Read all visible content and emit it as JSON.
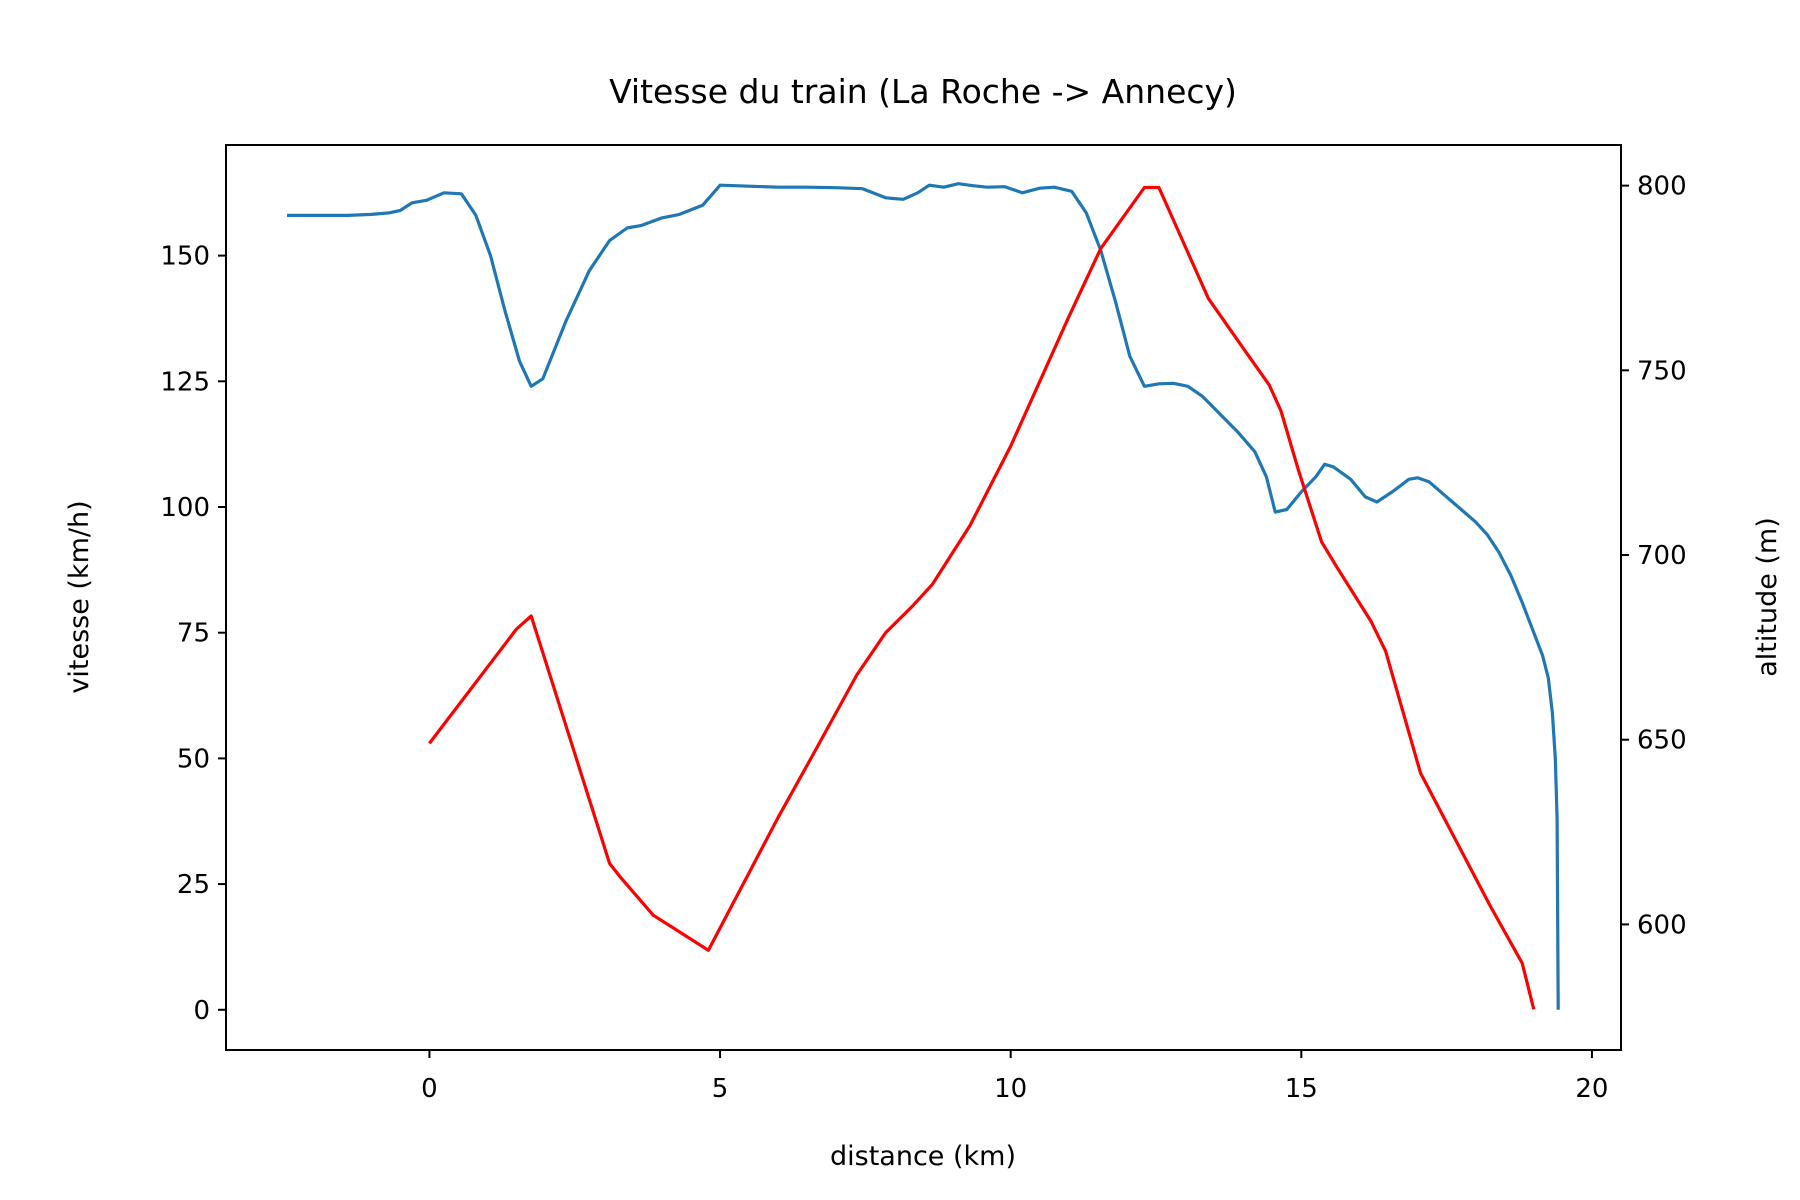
{
  "chart_data": {
    "type": "line",
    "title": "Vitesse du train (La Roche -> Annecy)",
    "xlabel": "distance (km)",
    "ylabel": "vitesse (km/h)",
    "y2label": "altitude (m)",
    "xlim": [
      -3.5,
      20.5
    ],
    "ylim": [
      -8,
      172
    ],
    "y2lim": [
      566,
      811
    ],
    "xticks": [
      "0",
      "5",
      "10",
      "15",
      "20"
    ],
    "yticks": [
      "0",
      "25",
      "50",
      "75",
      "100",
      "125",
      "150"
    ],
    "y2ticks": [
      "600",
      "650",
      "700",
      "750",
      "800"
    ],
    "grid": false,
    "series": [
      {
        "axis": "left",
        "color": "#1f77b4",
        "x": [
          -2.45,
          -1.9,
          -1.4,
          -1.0,
          -0.7,
          -0.5,
          -0.3,
          -0.05,
          0.25,
          0.55,
          0.8,
          1.05,
          1.3,
          1.55,
          1.75,
          1.95,
          2.35,
          2.75,
          3.1,
          3.4,
          3.65,
          4.0,
          4.3,
          4.7,
          5.0,
          5.5,
          6.0,
          6.5,
          7.0,
          7.45,
          7.85,
          8.15,
          8.4,
          8.6,
          8.85,
          9.1,
          9.35,
          9.6,
          9.9,
          10.2,
          10.5,
          10.75,
          11.05,
          11.3,
          11.55,
          11.8,
          12.05,
          12.3,
          12.55,
          12.8,
          13.05,
          13.3,
          13.6,
          13.9,
          14.2,
          14.4,
          14.55,
          14.75,
          15.0,
          15.25,
          15.4,
          15.55,
          15.85,
          16.1,
          16.3,
          16.6,
          16.85,
          17.0,
          17.2,
          17.5,
          17.75,
          18.0,
          18.2,
          18.4,
          18.6,
          18.8,
          19.0,
          19.15,
          19.25,
          19.32,
          19.37,
          19.4,
          19.42
        ],
        "y": [
          158,
          158,
          158,
          158.2,
          158.5,
          159,
          160.5,
          161,
          162.5,
          162.3,
          158,
          150,
          139,
          129,
          124,
          125.5,
          137,
          147,
          153,
          155.5,
          156,
          157.5,
          158.2,
          160,
          164,
          163.8,
          163.6,
          163.6,
          163.5,
          163.3,
          161.5,
          161.2,
          162.5,
          164,
          163.6,
          164.3,
          163.9,
          163.6,
          163.7,
          162.5,
          163.4,
          163.6,
          162.8,
          158.5,
          151,
          141,
          130,
          124,
          124.5,
          124.6,
          124,
          122,
          118.5,
          115,
          111,
          106,
          99,
          99.5,
          103,
          106,
          108.5,
          108,
          105.5,
          102,
          101,
          103.3,
          105.5,
          105.8,
          105,
          102,
          99.5,
          97,
          94.5,
          91,
          86.5,
          81,
          75,
          70.5,
          66,
          59,
          50,
          38,
          0
        ]
      },
      {
        "axis": "right",
        "color": "#ff0000",
        "x": [
          0.0,
          1.5,
          1.75,
          3.1,
          3.3,
          3.85,
          4.2,
          4.8,
          5.5,
          6.0,
          6.6,
          7.35,
          7.85,
          8.3,
          8.65,
          9.3,
          10.0,
          11.0,
          11.55,
          12.3,
          12.55,
          13.4,
          14.0,
          14.45,
          14.65,
          14.95,
          15.35,
          15.6,
          16.2,
          16.45,
          17.05,
          17.5,
          18.25,
          18.8,
          19.0
        ],
        "y": [
          649,
          680,
          683.5,
          616.5,
          612.5,
          602.5,
          599,
          593,
          614,
          629,
          646,
          667.5,
          679,
          686,
          692,
          708,
          729.5,
          764.5,
          783,
          799.5,
          799.5,
          769.5,
          756,
          746,
          739,
          723,
          703.5,
          697,
          682,
          674,
          641,
          627.5,
          605,
          589.5,
          577
        ]
      }
    ]
  }
}
